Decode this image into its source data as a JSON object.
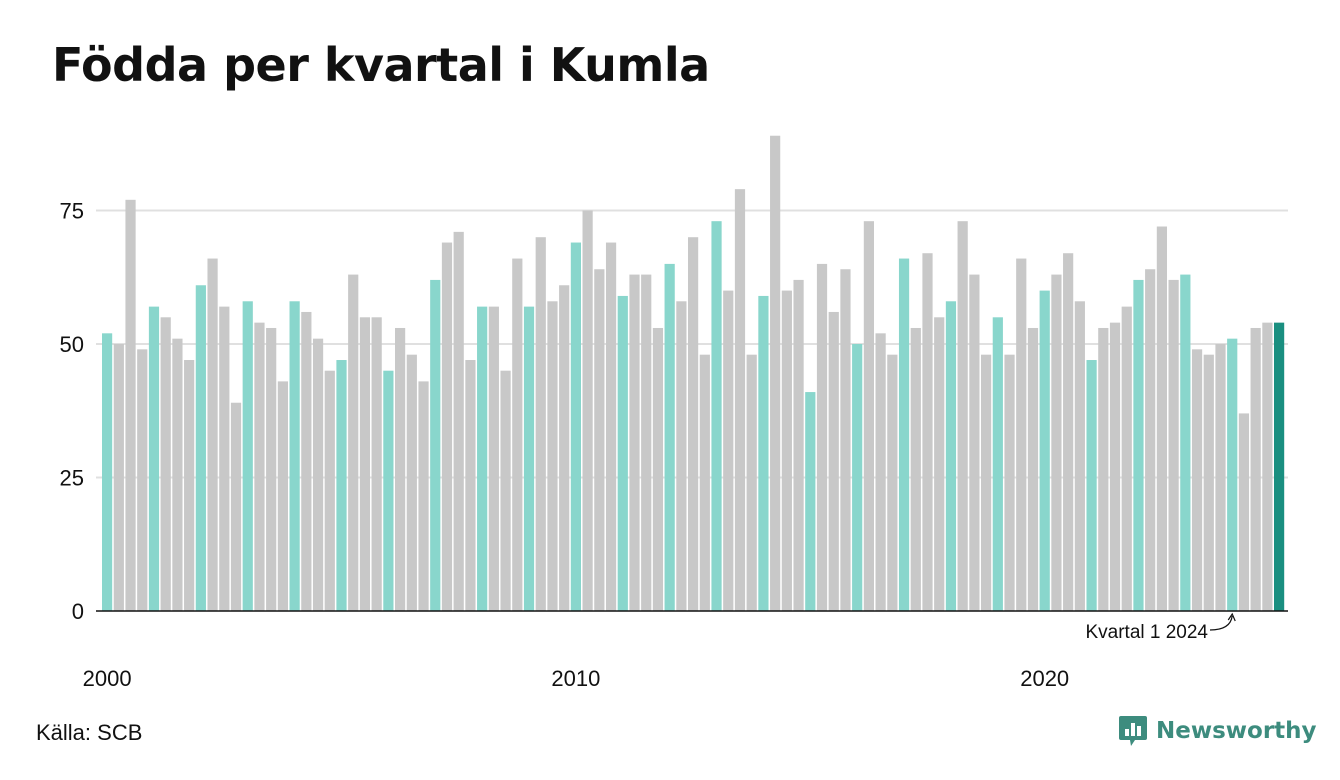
{
  "title": "Födda per kvartal i Kumla",
  "source": "Källa: SCB",
  "brand": {
    "name": "Newsworthy",
    "icon": "newsworthy-logo-icon"
  },
  "colors": {
    "q1": "#89d6cc",
    "other": "#c8c8c8",
    "latest": "#1a8f80",
    "grid": "#e0e0e0",
    "axis": "#111111",
    "brand": "#3d8c7e"
  },
  "chart_data": {
    "type": "bar",
    "x_ticks": [
      "2000",
      "2010",
      "2020"
    ],
    "y_ticks": [
      0,
      25,
      50,
      75
    ],
    "ylim": [
      0,
      90
    ],
    "grid": true,
    "annotation": {
      "text": "Kvartal 1 2024",
      "year": 2024,
      "quarter": 1
    },
    "series": [
      {
        "start_year": 2000,
        "values": [
          52,
          50,
          77,
          49,
          57,
          55,
          51,
          47,
          61,
          66,
          57,
          39,
          58,
          54,
          53,
          43,
          58,
          56,
          51,
          45,
          47,
          63,
          55,
          55,
          45,
          53,
          48,
          43,
          62,
          69,
          71,
          47,
          57,
          57,
          45,
          66,
          57,
          70,
          58,
          61,
          69,
          75,
          64,
          69,
          59,
          63,
          63,
          53,
          65,
          58,
          70,
          48,
          73,
          60,
          79,
          48,
          59,
          89,
          60,
          62,
          41,
          65,
          56,
          64,
          50,
          73,
          52,
          48,
          66,
          53,
          67,
          55,
          58,
          73,
          63,
          48,
          55,
          48,
          66,
          53,
          60,
          63,
          67,
          58,
          47,
          53,
          54,
          57,
          62,
          64,
          72,
          62,
          63,
          49,
          48,
          50,
          51,
          37,
          53,
          54,
          54
        ]
      }
    ]
  }
}
